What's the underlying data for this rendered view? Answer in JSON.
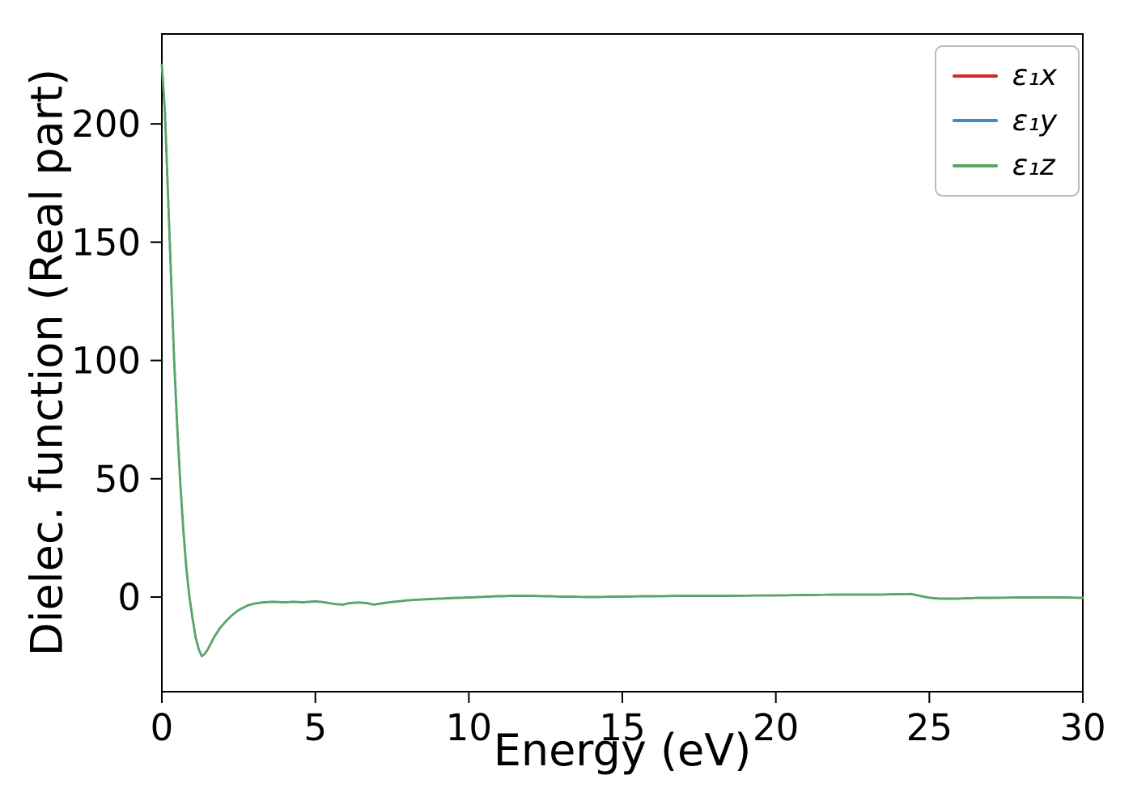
{
  "figure": {
    "background": "#ffffff",
    "frame_color": "#000000"
  },
  "chart_data": {
    "type": "line",
    "title": "",
    "xlabel": "Energy (eV)",
    "ylabel": "Dielec. function (Real part)",
    "xlim": [
      0,
      30
    ],
    "ylim": [
      -40,
      238
    ],
    "x_ticks": [
      0,
      5,
      10,
      15,
      20,
      25,
      30
    ],
    "y_ticks": [
      0,
      50,
      100,
      150,
      200
    ],
    "grid": false,
    "legend_position": "upper right",
    "x": [
      0,
      0.1,
      0.2,
      0.3,
      0.4,
      0.5,
      0.6,
      0.7,
      0.8,
      0.9,
      1.0,
      1.1,
      1.2,
      1.3,
      1.4,
      1.5,
      1.7,
      1.9,
      2.1,
      2.3,
      2.5,
      2.8,
      3.0,
      3.3,
      3.6,
      4.0,
      4.3,
      4.6,
      5.0,
      5.3,
      5.6,
      5.9,
      6.1,
      6.4,
      6.7,
      6.9,
      7.1,
      7.4,
      7.7,
      8.0,
      8.5,
      9.0,
      9.5,
      10,
      10.5,
      11,
      11.5,
      12,
      12.5,
      13,
      13.5,
      14,
      14.5,
      15,
      16,
      17,
      18,
      19,
      20,
      21,
      22,
      23,
      23.5,
      24,
      24.4,
      24.7,
      25,
      25.3,
      25.7,
      26,
      26.5,
      27,
      28,
      29,
      30
    ],
    "series": [
      {
        "name": "ε₁x",
        "color": "#d62728",
        "values": [
          225,
          205,
          170,
          135,
          100,
          72,
          48,
          28,
          12,
          0,
          -9,
          -17,
          -22,
          -25,
          -24,
          -22,
          -17,
          -13,
          -10,
          -7.5,
          -5.5,
          -3.5,
          -2.8,
          -2.2,
          -2.0,
          -2.2,
          -2.0,
          -2.2,
          -1.8,
          -2.2,
          -2.9,
          -3.2,
          -2.6,
          -2.3,
          -2.6,
          -3.2,
          -2.8,
          -2.2,
          -1.8,
          -1.4,
          -1.0,
          -0.7,
          -0.4,
          -0.2,
          0.1,
          0.4,
          0.5,
          0.5,
          0.4,
          0.2,
          0.1,
          0.0,
          0.1,
          0.2,
          0.4,
          0.5,
          0.5,
          0.6,
          0.7,
          0.9,
          1.0,
          1.0,
          1.1,
          1.2,
          1.3,
          0.5,
          -0.3,
          -0.6,
          -0.7,
          -0.6,
          -0.4,
          -0.3,
          -0.2,
          -0.1,
          -0.3
        ]
      },
      {
        "name": "ε₁y",
        "color": "#4a86c0",
        "values": [
          225,
          205,
          170,
          135,
          100,
          72,
          48,
          28,
          12,
          0,
          -9,
          -17,
          -22,
          -25,
          -24,
          -22,
          -17,
          -13,
          -10,
          -7.5,
          -5.5,
          -3.5,
          -2.8,
          -2.2,
          -2.0,
          -2.2,
          -2.0,
          -2.2,
          -1.8,
          -2.2,
          -2.9,
          -3.2,
          -2.6,
          -2.3,
          -2.6,
          -3.2,
          -2.8,
          -2.2,
          -1.8,
          -1.4,
          -1.0,
          -0.7,
          -0.4,
          -0.2,
          0.1,
          0.4,
          0.5,
          0.5,
          0.4,
          0.2,
          0.1,
          0.0,
          0.1,
          0.2,
          0.4,
          0.5,
          0.5,
          0.6,
          0.7,
          0.9,
          1.0,
          1.0,
          1.1,
          1.2,
          1.3,
          0.5,
          -0.3,
          -0.6,
          -0.7,
          -0.6,
          -0.4,
          -0.3,
          -0.2,
          -0.1,
          -0.3
        ]
      },
      {
        "name": "ε₁z",
        "color": "#55a868",
        "values": [
          225,
          205,
          170,
          135,
          100,
          72,
          48,
          28,
          12,
          0,
          -9,
          -17,
          -22,
          -25,
          -24,
          -22,
          -17,
          -13,
          -10,
          -7.5,
          -5.5,
          -3.5,
          -2.8,
          -2.2,
          -2.0,
          -2.2,
          -2.0,
          -2.2,
          -1.8,
          -2.2,
          -2.9,
          -3.2,
          -2.6,
          -2.3,
          -2.6,
          -3.2,
          -2.8,
          -2.2,
          -1.8,
          -1.4,
          -1.0,
          -0.7,
          -0.4,
          -0.2,
          0.1,
          0.4,
          0.5,
          0.5,
          0.4,
          0.2,
          0.1,
          0.0,
          0.1,
          0.2,
          0.4,
          0.5,
          0.5,
          0.6,
          0.7,
          0.9,
          1.0,
          1.0,
          1.1,
          1.2,
          1.3,
          0.5,
          -0.3,
          -0.6,
          -0.7,
          -0.6,
          -0.4,
          -0.3,
          -0.2,
          -0.1,
          -0.3
        ]
      }
    ]
  }
}
